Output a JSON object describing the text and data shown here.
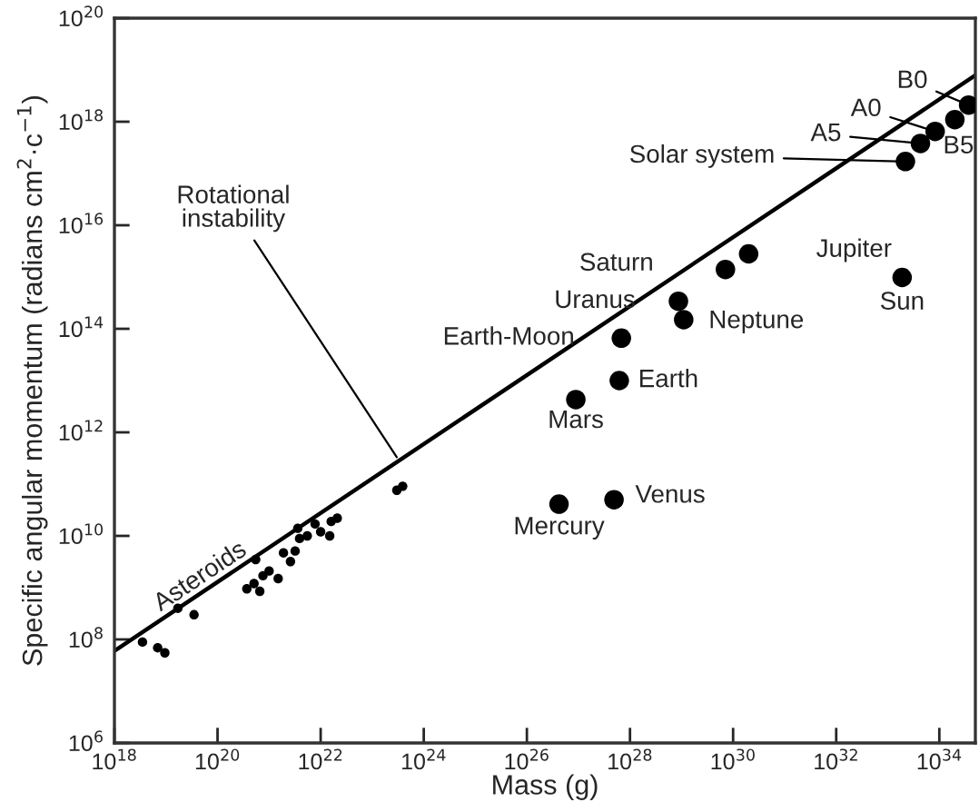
{
  "chart_data": {
    "type": "scatter",
    "xlabel": "Mass (g)",
    "ylabel": "Specific angular momentum (radians cm$^{2}$·c$^{−1}$)",
    "log": "xy",
    "grid": false,
    "legend": false,
    "marker": "circle",
    "xlim": [
      1e+18,
      5e+34
    ],
    "ylim": [
      1000000.0,
      1e+20
    ],
    "xticks": [
      {
        "value": 1e+18,
        "label": "10$^{18}$"
      },
      {
        "value": 1e+20,
        "label": "10$^{20}$"
      },
      {
        "value": 1e+22,
        "label": "10$^{22}$"
      },
      {
        "value": 1e+24,
        "label": "10$^{24}$"
      },
      {
        "value": 1e+26,
        "label": "10$^{26}$"
      },
      {
        "value": 1e+28,
        "label": "10$^{28}$"
      },
      {
        "value": 1e+30,
        "label": "10$^{30}$"
      },
      {
        "value": 1e+32,
        "label": "10$^{32}$"
      },
      {
        "value": 1e+34,
        "label": "10$^{34}$"
      }
    ],
    "yticks": [
      {
        "value": 1000000.0,
        "label": "10$^{6}$"
      },
      {
        "value": 100000000.0,
        "label": "10$^{8}$"
      },
      {
        "value": 10000000000.0,
        "label": "10$^{10}$"
      },
      {
        "value": 1000000000000.0,
        "label": "10$^{12}$"
      },
      {
        "value": 100000000000000.0,
        "label": "10$^{14}$"
      },
      {
        "value": 1e+16,
        "label": "10$^{16}$"
      },
      {
        "value": 1e+18,
        "label": "10$^{18}$"
      },
      {
        "value": 1e+20,
        "label": "10$^{20}$"
      }
    ],
    "series": [
      {
        "type": "line",
        "marker": "none",
        "color": "#000000",
        "x": [
          1e+18,
          5e+34
        ],
        "values": [
          60000000.0,
          7.9e+18
        ]
      },
      {
        "type": "scatter",
        "color": "#000000",
        "x": [
          3.5e+18,
          6.9e+18,
          9.5e+18,
          1.7e+19,
          3.5e+19,
          5.5e+20,
          3.7e+20,
          5.1e+20,
          6.6e+20,
          7.6e+20,
          1e+21,
          1.5e+21,
          1.9e+21,
          2.6e+21,
          3.2e+21,
          3.6e+21,
          3.9e+21,
          5.5e+21,
          7.8e+21,
          1e+22,
          1.5e+22,
          1.6e+22,
          2.1e+22,
          3e+23,
          3.9e+23
        ],
        "values": [
          89000000.0,
          69000000.0,
          55000000.0,
          400000000.0,
          300000000.0,
          3500000000.0,
          950000000.0,
          1200000000.0,
          850000000.0,
          1700000000.0,
          2100000000.0,
          1500000000.0,
          4700000000.0,
          3200000000.0,
          5100000000.0,
          14000000000.0,
          8900000000.0,
          10000000000.0,
          17000000000.0,
          12000000000.0,
          10000000000.0,
          19000000000.0,
          22000000000.0,
          76000000000.0,
          91000000000.0
        ]
      },
      {
        "color": "#000000",
        "x": [
          3.7e+34,
          2e+34,
          8.3e+33,
          4.3e+33,
          2.2e+33,
          2e+30,
          7.1e+29,
          8.7e+28,
          1.1e+29,
          1.9e+33,
          6.8e+27,
          6.2e+27,
          8.9e+26,
          4.2e+26,
          4.9e+27
        ],
        "values": [
          2.1e+18,
          1.1e+18,
          6.5e+17,
          3.8e+17,
          1.7e+17,
          2800000000000000.0,
          1400000000000000.0,
          340000000000000.0,
          150000000000000.0,
          980000000000000.0,
          66000000000000.0,
          10000000000000.0,
          4300000000000.0,
          41000000000.0,
          50000000000.0
        ]
      }
    ],
    "annotations": [
      {
        "text": "Rotational\ninstability",
        "x": 3e+23,
        "y": 330000000000.0
      },
      {
        "text": "Asteroids",
        "x": 4e+19,
        "y": 710000000.0
      },
      {
        "text": "B0",
        "x": 3.7e+34,
        "y": 2.1e+18
      },
      {
        "text": "B5",
        "x": 2e+34,
        "y": 1.1e+18
      },
      {
        "text": "A0",
        "x": 8.3e+33,
        "y": 6.5e+17
      },
      "A5",
      "Solar system",
      {
        "text": "Jupiter",
        "x": 2e+30,
        "y": 2800000000000000.0
      },
      {
        "text": "Saturn",
        "x": 7.1e+29,
        "y": 1400000000000000.0
      },
      {
        "text": "Uranus",
        "x": 8.7e+28,
        "y": 340000000000000.0
      },
      {
        "text": "Neptune",
        "x": 1.1e+29,
        "y": 150000000000000.0
      },
      {
        "text": "Sun",
        "x": 1.9e+33,
        "y": 980000000000000.0
      },
      {
        "text": "Earth-Moon",
        "x": 6.8e+27,
        "y": 66000000000000.0
      },
      {
        "text": "Earth",
        "x": 6.2e+27,
        "y": 10000000000000.0
      },
      {
        "text": "Mars",
        "x": 8.9e+26,
        "y": 4300000000000.0
      },
      {
        "text": "Mercury",
        "x": 4.2e+26,
        "y": 41000000000.0
      },
      {
        "text": "Venus",
        "x": 4.9e+27,
        "y": 50000000000.0
      }
    ]
  }
}
